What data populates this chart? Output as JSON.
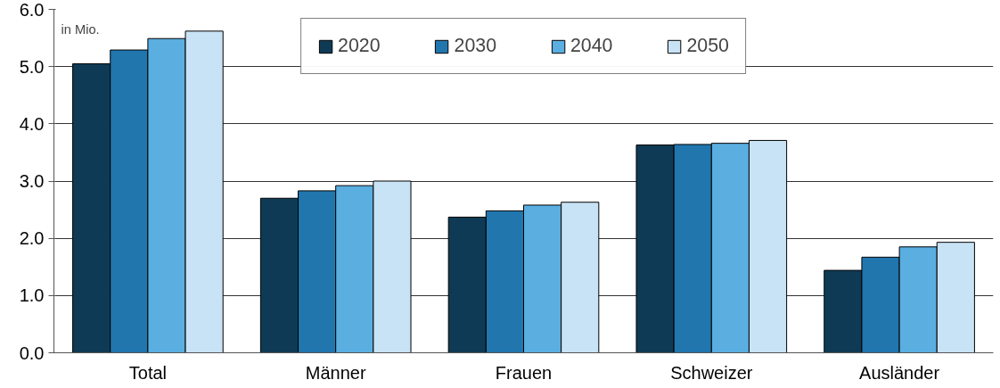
{
  "chart_data": {
    "type": "bar",
    "categories": [
      "Total",
      "Männer",
      "Frauen",
      "Schweizer",
      "Ausländer"
    ],
    "series": [
      {
        "name": "2020",
        "color": "#0f3a55",
        "values": [
          5.05,
          2.7,
          2.37,
          3.63,
          1.44
        ]
      },
      {
        "name": "2030",
        "color": "#2176ae",
        "values": [
          5.29,
          2.83,
          2.48,
          3.64,
          1.67
        ]
      },
      {
        "name": "2040",
        "color": "#5aaee0",
        "values": [
          5.49,
          2.92,
          2.58,
          3.66,
          1.85
        ]
      },
      {
        "name": "2050",
        "color": "#c8e3f5",
        "values": [
          5.62,
          3.0,
          2.63,
          3.71,
          1.93
        ]
      }
    ],
    "ylim": [
      0,
      6
    ],
    "yticks": [
      {
        "value": 0,
        "label": "0.0"
      },
      {
        "value": 1,
        "label": "1.0"
      },
      {
        "value": 2,
        "label": "2.0"
      },
      {
        "value": 3,
        "label": "3.0"
      },
      {
        "value": 4,
        "label": "4.0"
      },
      {
        "value": 5,
        "label": "5.0"
      },
      {
        "value": 6,
        "label": "6.0"
      }
    ],
    "annotations": [
      "in Mio."
    ],
    "grid": "y",
    "legend": "top"
  }
}
